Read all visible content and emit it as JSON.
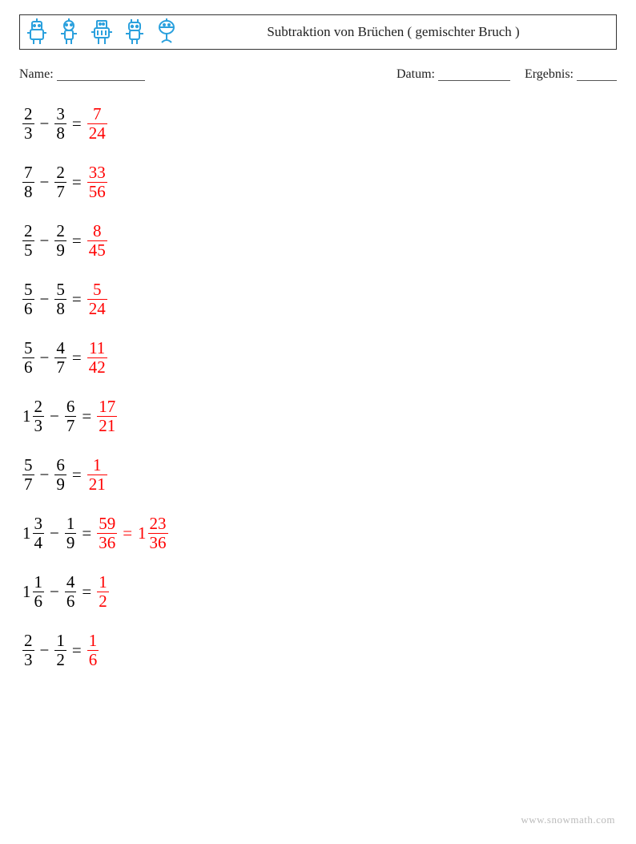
{
  "header": {
    "title": "Subtraktion von Brüchen ( gemischter Bruch )",
    "robot_color": "#2aa0dd"
  },
  "meta": {
    "name_label": "Name:",
    "date_label": "Datum:",
    "result_label": "Ergebnis:",
    "name_blank_width": 110,
    "date_blank_width": 90,
    "result_blank_width": 50
  },
  "style": {
    "problem_fontsize": 21,
    "problem_color": "#000000",
    "answer_color": "#ff0000"
  },
  "problems": [
    {
      "a": {
        "whole": null,
        "num": "2",
        "den": "3"
      },
      "b": {
        "whole": null,
        "num": "3",
        "den": "8"
      },
      "answers": [
        {
          "whole": null,
          "num": "7",
          "den": "24"
        }
      ]
    },
    {
      "a": {
        "whole": null,
        "num": "7",
        "den": "8"
      },
      "b": {
        "whole": null,
        "num": "2",
        "den": "7"
      },
      "answers": [
        {
          "whole": null,
          "num": "33",
          "den": "56"
        }
      ]
    },
    {
      "a": {
        "whole": null,
        "num": "2",
        "den": "5"
      },
      "b": {
        "whole": null,
        "num": "2",
        "den": "9"
      },
      "answers": [
        {
          "whole": null,
          "num": "8",
          "den": "45"
        }
      ]
    },
    {
      "a": {
        "whole": null,
        "num": "5",
        "den": "6"
      },
      "b": {
        "whole": null,
        "num": "5",
        "den": "8"
      },
      "answers": [
        {
          "whole": null,
          "num": "5",
          "den": "24"
        }
      ]
    },
    {
      "a": {
        "whole": null,
        "num": "5",
        "den": "6"
      },
      "b": {
        "whole": null,
        "num": "4",
        "den": "7"
      },
      "answers": [
        {
          "whole": null,
          "num": "11",
          "den": "42"
        }
      ]
    },
    {
      "a": {
        "whole": "1",
        "num": "2",
        "den": "3"
      },
      "b": {
        "whole": null,
        "num": "6",
        "den": "7"
      },
      "answers": [
        {
          "whole": null,
          "num": "17",
          "den": "21"
        }
      ]
    },
    {
      "a": {
        "whole": null,
        "num": "5",
        "den": "7"
      },
      "b": {
        "whole": null,
        "num": "6",
        "den": "9"
      },
      "answers": [
        {
          "whole": null,
          "num": "1",
          "den": "21"
        }
      ]
    },
    {
      "a": {
        "whole": "1",
        "num": "3",
        "den": "4"
      },
      "b": {
        "whole": null,
        "num": "1",
        "den": "9"
      },
      "answers": [
        {
          "whole": null,
          "num": "59",
          "den": "36"
        },
        {
          "whole": "1",
          "num": "23",
          "den": "36"
        }
      ]
    },
    {
      "a": {
        "whole": "1",
        "num": "1",
        "den": "6"
      },
      "b": {
        "whole": null,
        "num": "4",
        "den": "6"
      },
      "answers": [
        {
          "whole": null,
          "num": "1",
          "den": "2"
        }
      ]
    },
    {
      "a": {
        "whole": null,
        "num": "2",
        "den": "3"
      },
      "b": {
        "whole": null,
        "num": "1",
        "den": "2"
      },
      "answers": [
        {
          "whole": null,
          "num": "1",
          "den": "6"
        }
      ]
    }
  ],
  "footer": {
    "text": "www.snowmath.com"
  }
}
